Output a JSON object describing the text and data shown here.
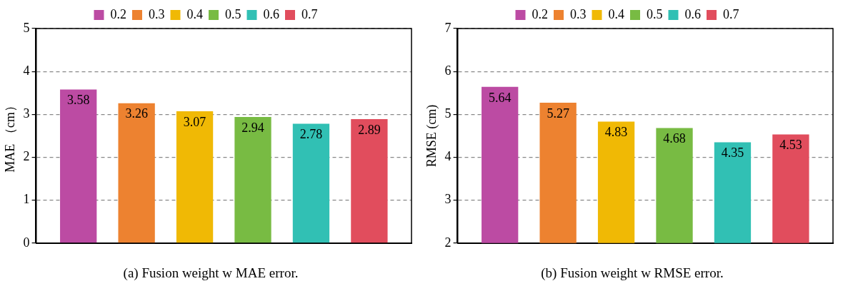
{
  "chart_data": [
    {
      "type": "bar",
      "title": "(a) Fusion weight w MAE error.",
      "ylabel": "MAE （cm）",
      "categories": [
        null
      ],
      "ylim": [
        0,
        5
      ],
      "yticks": [
        0,
        1,
        2,
        3,
        4,
        5
      ],
      "grid": "y",
      "legend": "top",
      "data_labels": true,
      "series": [
        {
          "name": "0.2",
          "color": "#bc4ba3",
          "values": [
            3.58
          ]
        },
        {
          "name": "0.3",
          "color": "#ed8230",
          "values": [
            3.26
          ]
        },
        {
          "name": "0.4",
          "color": "#f0b905",
          "values": [
            3.07
          ]
        },
        {
          "name": "0.5",
          "color": "#78bb43",
          "values": [
            2.94
          ]
        },
        {
          "name": "0.6",
          "color": "#31c0b4",
          "values": [
            2.78
          ]
        },
        {
          "name": "0.7",
          "color": "#e14d5d",
          "values": [
            2.89
          ]
        }
      ]
    },
    {
      "type": "bar",
      "title": "(b) Fusion weight w RMSE error.",
      "ylabel": "RMSE (cm)",
      "categories": [
        null
      ],
      "ylim": [
        2,
        7
      ],
      "yticks": [
        2,
        3,
        4,
        5,
        6,
        7
      ],
      "grid": "y",
      "legend": "top",
      "data_labels": true,
      "series": [
        {
          "name": "0.2",
          "color": "#bc4ba3",
          "values": [
            5.64
          ]
        },
        {
          "name": "0.3",
          "color": "#ed8230",
          "values": [
            5.27
          ]
        },
        {
          "name": "0.4",
          "color": "#f0b905",
          "values": [
            4.83
          ]
        },
        {
          "name": "0.5",
          "color": "#78bb43",
          "values": [
            4.68
          ]
        },
        {
          "name": "0.6",
          "color": "#31c0b4",
          "values": [
            4.35
          ]
        },
        {
          "name": "0.7",
          "color": "#e14d5d",
          "values": [
            4.53
          ]
        }
      ]
    }
  ]
}
